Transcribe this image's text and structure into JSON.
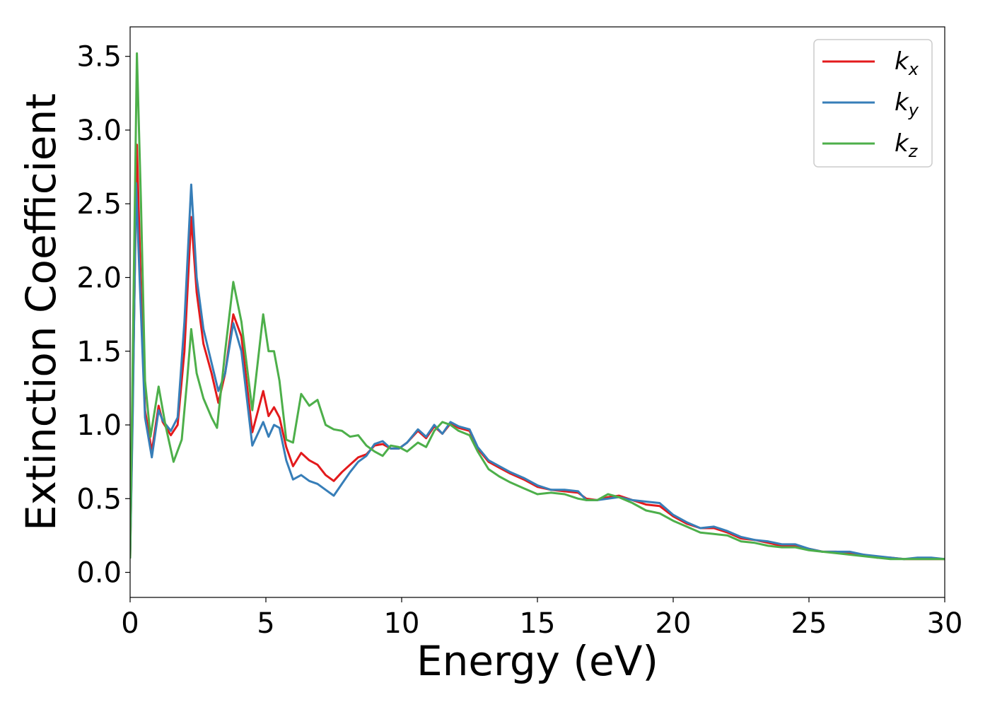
{
  "chart_data": {
    "type": "line",
    "title": "",
    "xlabel": "Energy (eV)",
    "ylabel": "Extinction Coefficient",
    "xlim": [
      0,
      30
    ],
    "ylim": [
      -0.17,
      3.7
    ],
    "xticks": [
      0,
      5,
      10,
      15,
      20,
      25,
      30
    ],
    "xtick_labels": [
      "0",
      "5",
      "10",
      "15",
      "20",
      "25",
      "30"
    ],
    "yticks": [
      0.0,
      0.5,
      1.0,
      1.5,
      2.0,
      2.5,
      3.0,
      3.5
    ],
    "ytick_labels": [
      "0.0",
      "0.5",
      "1.0",
      "1.5",
      "2.0",
      "2.5",
      "3.0",
      "3.5"
    ],
    "grid": false,
    "legend": "top-right",
    "series": [
      {
        "name": "k_x",
        "label_main": "k",
        "label_sub": "x",
        "color": "#e31a1c",
        "x": [
          0,
          0.1,
          0.25,
          0.4,
          0.55,
          0.8,
          1.05,
          1.2,
          1.5,
          1.75,
          2.0,
          2.25,
          2.45,
          2.7,
          3.0,
          3.25,
          3.5,
          3.8,
          4.1,
          4.5,
          4.9,
          5.1,
          5.3,
          5.5,
          5.75,
          6.0,
          6.3,
          6.6,
          6.9,
          7.2,
          7.5,
          7.8,
          8.1,
          8.4,
          8.7,
          9.0,
          9.3,
          9.6,
          9.9,
          10.2,
          10.6,
          10.9,
          11.2,
          11.5,
          11.8,
          12.1,
          12.5,
          12.8,
          13.2,
          13.6,
          14.0,
          14.5,
          15.0,
          15.5,
          16.0,
          16.5,
          16.8,
          17.2,
          17.6,
          18.0,
          18.5,
          19.0,
          19.5,
          20.0,
          20.5,
          21.0,
          21.5,
          22.0,
          22.5,
          23.0,
          23.5,
          24.0,
          24.5,
          25.0,
          25.5,
          26.0,
          26.5,
          27.0,
          27.5,
          28.0,
          28.5,
          29.0,
          29.5,
          30.0
        ],
        "y": [
          0.1,
          1.2,
          2.9,
          1.9,
          1.1,
          0.82,
          1.13,
          1.02,
          0.93,
          1.0,
          1.5,
          2.41,
          1.9,
          1.55,
          1.35,
          1.15,
          1.35,
          1.75,
          1.6,
          0.95,
          1.23,
          1.06,
          1.12,
          1.05,
          0.85,
          0.72,
          0.81,
          0.76,
          0.73,
          0.66,
          0.62,
          0.68,
          0.73,
          0.78,
          0.8,
          0.86,
          0.87,
          0.84,
          0.84,
          0.88,
          0.96,
          0.91,
          0.99,
          0.94,
          1.01,
          0.98,
          0.96,
          0.84,
          0.75,
          0.71,
          0.67,
          0.63,
          0.58,
          0.56,
          0.55,
          0.54,
          0.5,
          0.49,
          0.51,
          0.52,
          0.49,
          0.46,
          0.45,
          0.38,
          0.33,
          0.3,
          0.3,
          0.27,
          0.23,
          0.22,
          0.2,
          0.18,
          0.18,
          0.16,
          0.14,
          0.14,
          0.13,
          0.12,
          0.1,
          0.1,
          0.09,
          0.09,
          0.09,
          0.09
        ]
      },
      {
        "name": "k_y",
        "label_main": "k",
        "label_sub": "y",
        "color": "#377eb8",
        "x": [
          0,
          0.1,
          0.22,
          0.35,
          0.55,
          0.8,
          1.05,
          1.2,
          1.5,
          1.75,
          2.0,
          2.25,
          2.45,
          2.7,
          3.0,
          3.25,
          3.5,
          3.8,
          4.1,
          4.5,
          4.9,
          5.1,
          5.3,
          5.5,
          5.75,
          6.0,
          6.3,
          6.6,
          6.9,
          7.2,
          7.5,
          7.8,
          8.1,
          8.4,
          8.7,
          9.0,
          9.3,
          9.6,
          9.9,
          10.2,
          10.6,
          10.9,
          11.2,
          11.5,
          11.8,
          12.1,
          12.5,
          12.8,
          13.2,
          13.6,
          14.0,
          14.5,
          15.0,
          15.5,
          16.0,
          16.5,
          16.8,
          17.2,
          17.6,
          18.0,
          18.5,
          19.0,
          19.5,
          20.0,
          20.5,
          21.0,
          21.5,
          22.0,
          22.5,
          23.0,
          23.5,
          24.0,
          24.5,
          25.0,
          25.5,
          26.0,
          26.5,
          27.0,
          27.5,
          28.0,
          28.5,
          29.0,
          29.5,
          30.0
        ],
        "y": [
          0.1,
          1.1,
          2.64,
          2.0,
          1.05,
          0.78,
          1.1,
          1.03,
          0.96,
          1.05,
          1.7,
          2.63,
          2.0,
          1.65,
          1.42,
          1.23,
          1.35,
          1.69,
          1.5,
          0.86,
          1.02,
          0.92,
          1.0,
          0.98,
          0.76,
          0.63,
          0.66,
          0.62,
          0.6,
          0.56,
          0.52,
          0.6,
          0.68,
          0.75,
          0.79,
          0.87,
          0.89,
          0.84,
          0.84,
          0.88,
          0.97,
          0.92,
          1.0,
          0.94,
          1.02,
          0.99,
          0.97,
          0.85,
          0.76,
          0.72,
          0.68,
          0.64,
          0.59,
          0.56,
          0.56,
          0.55,
          0.49,
          0.49,
          0.5,
          0.51,
          0.49,
          0.48,
          0.47,
          0.39,
          0.34,
          0.3,
          0.31,
          0.28,
          0.24,
          0.22,
          0.21,
          0.19,
          0.19,
          0.16,
          0.14,
          0.14,
          0.14,
          0.12,
          0.11,
          0.1,
          0.09,
          0.1,
          0.1,
          0.09
        ]
      },
      {
        "name": "k_z",
        "label_main": "k",
        "label_sub": "z",
        "color": "#4daf4a",
        "x": [
          0,
          0.1,
          0.25,
          0.4,
          0.55,
          0.75,
          1.05,
          1.3,
          1.6,
          1.9,
          2.1,
          2.25,
          2.45,
          2.7,
          3.0,
          3.2,
          3.5,
          3.8,
          4.1,
          4.5,
          4.9,
          5.1,
          5.3,
          5.5,
          5.75,
          6.0,
          6.3,
          6.6,
          6.9,
          7.2,
          7.5,
          7.8,
          8.1,
          8.4,
          8.7,
          9.0,
          9.3,
          9.6,
          9.9,
          10.2,
          10.6,
          10.9,
          11.2,
          11.5,
          11.8,
          12.1,
          12.5,
          12.8,
          13.2,
          13.6,
          14.0,
          14.5,
          15.0,
          15.5,
          16.0,
          16.5,
          16.8,
          17.2,
          17.6,
          18.0,
          18.5,
          19.0,
          19.5,
          20.0,
          20.5,
          21.0,
          21.5,
          22.0,
          22.5,
          23.0,
          23.5,
          24.0,
          24.5,
          25.0,
          25.5,
          26.0,
          26.5,
          27.0,
          27.5,
          28.0,
          28.5,
          29.0,
          29.5,
          30.0
        ],
        "y": [
          0.1,
          1.5,
          3.52,
          2.5,
          1.3,
          0.92,
          1.26,
          1.0,
          0.75,
          0.9,
          1.3,
          1.65,
          1.35,
          1.18,
          1.05,
          0.98,
          1.5,
          1.97,
          1.7,
          1.1,
          1.75,
          1.5,
          1.5,
          1.3,
          0.9,
          0.88,
          1.21,
          1.13,
          1.17,
          1.0,
          0.97,
          0.96,
          0.92,
          0.93,
          0.86,
          0.82,
          0.79,
          0.86,
          0.85,
          0.82,
          0.88,
          0.85,
          0.96,
          1.02,
          1.0,
          0.96,
          0.93,
          0.82,
          0.7,
          0.65,
          0.61,
          0.57,
          0.53,
          0.54,
          0.53,
          0.5,
          0.49,
          0.49,
          0.53,
          0.51,
          0.47,
          0.42,
          0.4,
          0.35,
          0.31,
          0.27,
          0.26,
          0.25,
          0.21,
          0.2,
          0.18,
          0.17,
          0.17,
          0.15,
          0.14,
          0.13,
          0.12,
          0.11,
          0.1,
          0.09,
          0.09,
          0.09,
          0.09,
          0.09
        ]
      }
    ]
  }
}
